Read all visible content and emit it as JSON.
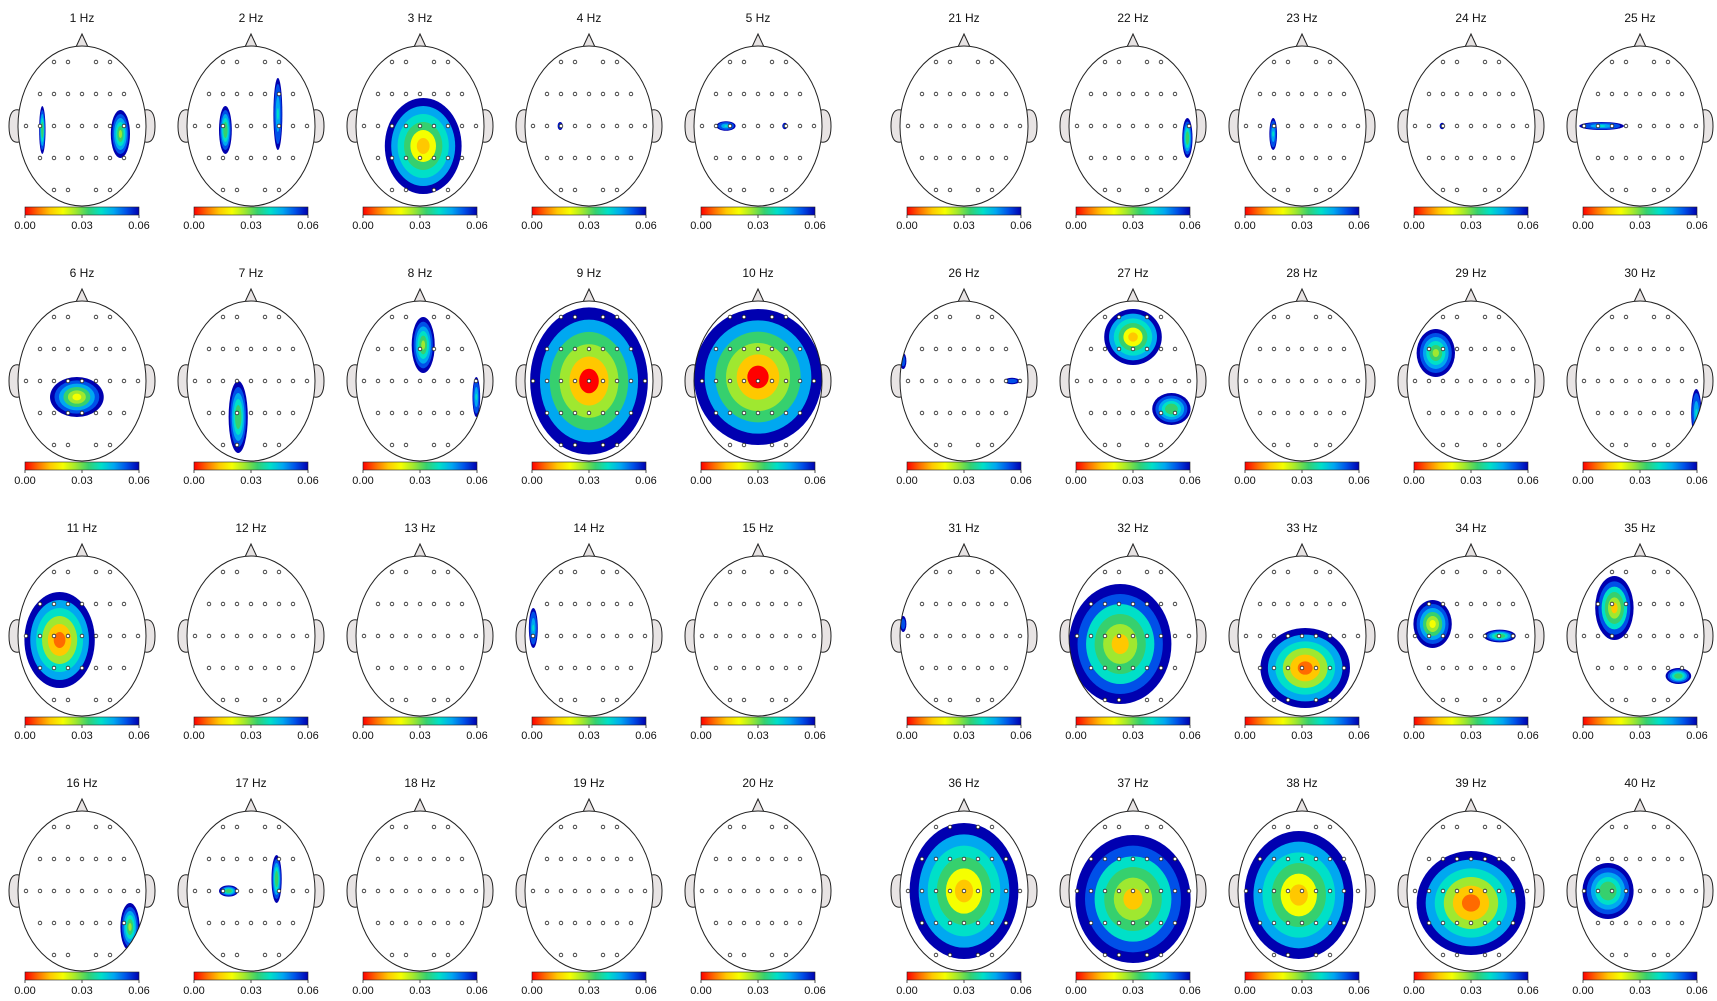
{
  "chart_data": {
    "type": "heatmap",
    "description_kind": "topographic scalp maps",
    "colorscale": {
      "min": 0.0,
      "max": 0.06,
      "tick_labels": [
        "0.00",
        "0.03",
        "0.06"
      ],
      "colors": [
        "#ff0000",
        "#ff6a00",
        "#ffc800",
        "#f5ff00",
        "#9fe830",
        "#36d06e",
        "#00e0c8",
        "#00a8f0",
        "#0050e8",
        "#0000b0"
      ]
    },
    "electrode_grid": [
      [
        -2,
        -2
      ],
      [
        -1,
        -2
      ],
      [
        1,
        -2
      ],
      [
        2,
        -2
      ],
      [
        -3,
        -1
      ],
      [
        -2,
        -1
      ],
      [
        -1,
        -1
      ],
      [
        0,
        -1
      ],
      [
        1,
        -1
      ],
      [
        2,
        -1
      ],
      [
        3,
        -1
      ],
      [
        -4,
        0
      ],
      [
        -3,
        0
      ],
      [
        -2,
        0
      ],
      [
        -1,
        0
      ],
      [
        0,
        0
      ],
      [
        1,
        0
      ],
      [
        2,
        0
      ],
      [
        3,
        0
      ],
      [
        4,
        0
      ],
      [
        -3,
        1
      ],
      [
        -2,
        1
      ],
      [
        -1,
        1
      ],
      [
        0,
        1
      ],
      [
        1,
        1
      ],
      [
        2,
        1
      ],
      [
        3,
        1
      ],
      [
        -2,
        2
      ],
      [
        -1,
        2
      ],
      [
        1,
        2
      ],
      [
        2,
        2
      ]
    ],
    "maps": [
      {
        "title": "1 Hz",
        "blobs": [
          {
            "cx": -0.62,
            "cy": 0.05,
            "rx": 0.05,
            "ry": 0.3,
            "level": 0.03
          },
          {
            "cx": 0.6,
            "cy": 0.1,
            "rx": 0.15,
            "ry": 0.3,
            "level": 0.025
          }
        ]
      },
      {
        "title": "2 Hz",
        "blobs": [
          {
            "cx": -0.4,
            "cy": 0.05,
            "rx": 0.1,
            "ry": 0.3,
            "level": 0.03
          },
          {
            "cx": 0.42,
            "cy": -0.15,
            "rx": 0.07,
            "ry": 0.45,
            "level": 0.04
          }
        ]
      },
      {
        "title": "3 Hz",
        "blobs": [
          {
            "cx": 0.05,
            "cy": 0.25,
            "rx": 0.6,
            "ry": 0.6,
            "level": 0.01
          }
        ]
      },
      {
        "title": "4 Hz",
        "blobs": [
          {
            "cx": -0.45,
            "cy": 0.0,
            "rx": 0.04,
            "ry": 0.05,
            "level": 0.05
          }
        ]
      },
      {
        "title": "5 Hz",
        "blobs": [
          {
            "cx": -0.5,
            "cy": 0.0,
            "rx": 0.15,
            "ry": 0.06,
            "level": 0.04
          },
          {
            "cx": 0.42,
            "cy": 0.0,
            "rx": 0.04,
            "ry": 0.04,
            "level": 0.05
          }
        ]
      },
      {
        "title": "6 Hz",
        "blobs": [
          {
            "cx": -0.08,
            "cy": 0.2,
            "rx": 0.42,
            "ry": 0.25,
            "level": 0.02
          }
        ]
      },
      {
        "title": "7 Hz",
        "blobs": [
          {
            "cx": -0.2,
            "cy": 0.45,
            "rx": 0.15,
            "ry": 0.45,
            "level": 0.03
          }
        ]
      },
      {
        "title": "8 Hz",
        "blobs": [
          {
            "cx": 0.05,
            "cy": -0.45,
            "rx": 0.18,
            "ry": 0.35,
            "level": 0.025
          },
          {
            "cx": 0.88,
            "cy": 0.2,
            "rx": 0.06,
            "ry": 0.25,
            "level": 0.04
          }
        ]
      },
      {
        "title": "9 Hz",
        "blobs": [
          {
            "cx": 0.0,
            "cy": 0.0,
            "rx": 0.92,
            "ry": 0.92,
            "level": 0.0
          }
        ]
      },
      {
        "title": "10 Hz",
        "blobs": [
          {
            "cx": 0.0,
            "cy": -0.05,
            "rx": 1.0,
            "ry": 0.85,
            "level": 0.0
          }
        ]
      },
      {
        "title": "11 Hz",
        "blobs": [
          {
            "cx": -0.35,
            "cy": 0.05,
            "rx": 0.55,
            "ry": 0.6,
            "level": 0.005
          }
        ]
      },
      {
        "title": "12 Hz",
        "blobs": []
      },
      {
        "title": "13 Hz",
        "blobs": []
      },
      {
        "title": "14 Hz",
        "blobs": [
          {
            "cx": -0.87,
            "cy": -0.1,
            "rx": 0.07,
            "ry": 0.25,
            "level": 0.04
          }
        ]
      },
      {
        "title": "15 Hz",
        "blobs": []
      },
      {
        "title": "16 Hz",
        "blobs": [
          {
            "cx": 0.75,
            "cy": 0.45,
            "rx": 0.15,
            "ry": 0.3,
            "level": 0.025
          }
        ]
      },
      {
        "title": "17 Hz",
        "blobs": [
          {
            "cx": -0.35,
            "cy": 0.0,
            "rx": 0.15,
            "ry": 0.07,
            "level": 0.03
          },
          {
            "cx": 0.4,
            "cy": -0.15,
            "rx": 0.08,
            "ry": 0.3,
            "level": 0.03
          }
        ]
      },
      {
        "title": "18 Hz",
        "blobs": []
      },
      {
        "title": "19 Hz",
        "blobs": []
      },
      {
        "title": "20 Hz",
        "blobs": []
      },
      {
        "title": "21 Hz",
        "blobs": []
      },
      {
        "title": "22 Hz",
        "blobs": [
          {
            "cx": 0.85,
            "cy": 0.15,
            "rx": 0.08,
            "ry": 0.25,
            "level": 0.03
          }
        ]
      },
      {
        "title": "23 Hz",
        "blobs": [
          {
            "cx": -0.45,
            "cy": 0.1,
            "rx": 0.06,
            "ry": 0.2,
            "level": 0.04
          }
        ]
      },
      {
        "title": "24 Hz",
        "blobs": [
          {
            "cx": -0.45,
            "cy": 0.0,
            "rx": 0.04,
            "ry": 0.04,
            "level": 0.05
          }
        ]
      },
      {
        "title": "25 Hz",
        "blobs": [
          {
            "cx": -0.6,
            "cy": 0.0,
            "rx": 0.35,
            "ry": 0.05,
            "level": 0.04
          }
        ]
      },
      {
        "title": "26 Hz",
        "blobs": [
          {
            "cx": -0.95,
            "cy": -0.25,
            "rx": 0.05,
            "ry": 0.1,
            "level": 0.05
          },
          {
            "cx": 0.75,
            "cy": 0.0,
            "rx": 0.12,
            "ry": 0.04,
            "level": 0.05
          }
        ]
      },
      {
        "title": "27 Hz",
        "blobs": [
          {
            "cx": 0.0,
            "cy": -0.55,
            "rx": 0.45,
            "ry": 0.35,
            "level": 0.01
          },
          {
            "cx": 0.6,
            "cy": 0.35,
            "rx": 0.3,
            "ry": 0.2,
            "level": 0.03
          }
        ]
      },
      {
        "title": "28 Hz",
        "blobs": []
      },
      {
        "title": "29 Hz",
        "blobs": [
          {
            "cx": -0.55,
            "cy": -0.35,
            "rx": 0.3,
            "ry": 0.3,
            "level": 0.025
          }
        ]
      },
      {
        "title": "30 Hz",
        "blobs": [
          {
            "cx": 0.88,
            "cy": 0.4,
            "rx": 0.08,
            "ry": 0.3,
            "level": 0.04
          }
        ]
      },
      {
        "title": "31 Hz",
        "blobs": [
          {
            "cx": -0.95,
            "cy": -0.15,
            "rx": 0.05,
            "ry": 0.1,
            "level": 0.05
          }
        ]
      },
      {
        "title": "32 Hz",
        "blobs": [
          {
            "cx": -0.2,
            "cy": 0.1,
            "rx": 0.8,
            "ry": 0.75,
            "level": 0.015
          }
        ]
      },
      {
        "title": "33 Hz",
        "blobs": [
          {
            "cx": 0.05,
            "cy": 0.4,
            "rx": 0.7,
            "ry": 0.5,
            "level": 0.005
          }
        ]
      },
      {
        "title": "34 Hz",
        "blobs": [
          {
            "cx": -0.6,
            "cy": -0.15,
            "rx": 0.3,
            "ry": 0.3,
            "level": 0.02
          },
          {
            "cx": 0.45,
            "cy": 0.0,
            "rx": 0.25,
            "ry": 0.08,
            "level": 0.03
          }
        ]
      },
      {
        "title": "35 Hz",
        "blobs": [
          {
            "cx": -0.4,
            "cy": -0.35,
            "rx": 0.3,
            "ry": 0.4,
            "level": 0.015
          },
          {
            "cx": 0.6,
            "cy": 0.5,
            "rx": 0.2,
            "ry": 0.1,
            "level": 0.03
          }
        ]
      },
      {
        "title": "36 Hz",
        "blobs": [
          {
            "cx": 0.0,
            "cy": 0.0,
            "rx": 0.85,
            "ry": 0.85,
            "level": 0.01
          }
        ]
      },
      {
        "title": "37 Hz",
        "blobs": [
          {
            "cx": 0.0,
            "cy": 0.1,
            "rx": 0.9,
            "ry": 0.8,
            "level": 0.015
          }
        ]
      },
      {
        "title": "38 Hz",
        "blobs": [
          {
            "cx": -0.05,
            "cy": 0.05,
            "rx": 0.85,
            "ry": 0.8,
            "level": 0.01
          }
        ]
      },
      {
        "title": "39 Hz",
        "blobs": [
          {
            "cx": 0.0,
            "cy": 0.15,
            "rx": 0.85,
            "ry": 0.65,
            "level": 0.005
          }
        ]
      },
      {
        "title": "40 Hz",
        "blobs": [
          {
            "cx": -0.5,
            "cy": 0.0,
            "rx": 0.4,
            "ry": 0.35,
            "level": 0.03
          }
        ]
      }
    ]
  }
}
